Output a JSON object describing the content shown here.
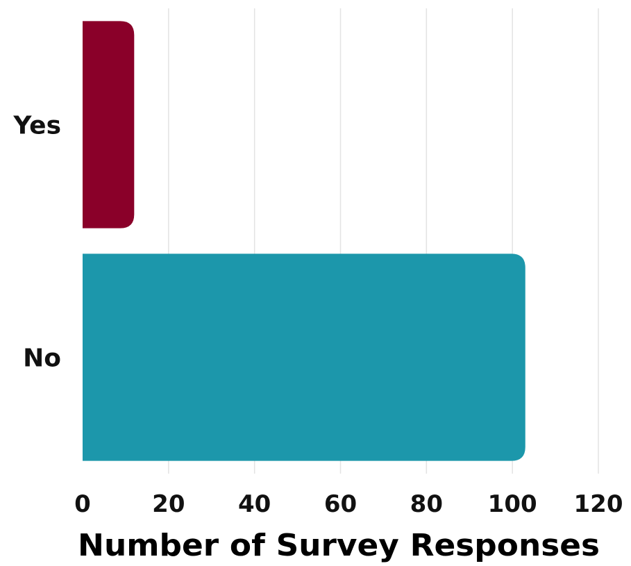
{
  "chart_data": {
    "type": "bar",
    "orientation": "horizontal",
    "categories": [
      "Yes",
      "No"
    ],
    "values": [
      12,
      103
    ],
    "colors": [
      "#8a0029",
      "#1c97ab"
    ],
    "title": "",
    "xlabel": "Number of Survey Responses",
    "ylabel": "",
    "xlim": [
      0,
      120
    ],
    "xticks": [
      0,
      20,
      40,
      60,
      80,
      100,
      120
    ],
    "grid": "vertical"
  }
}
